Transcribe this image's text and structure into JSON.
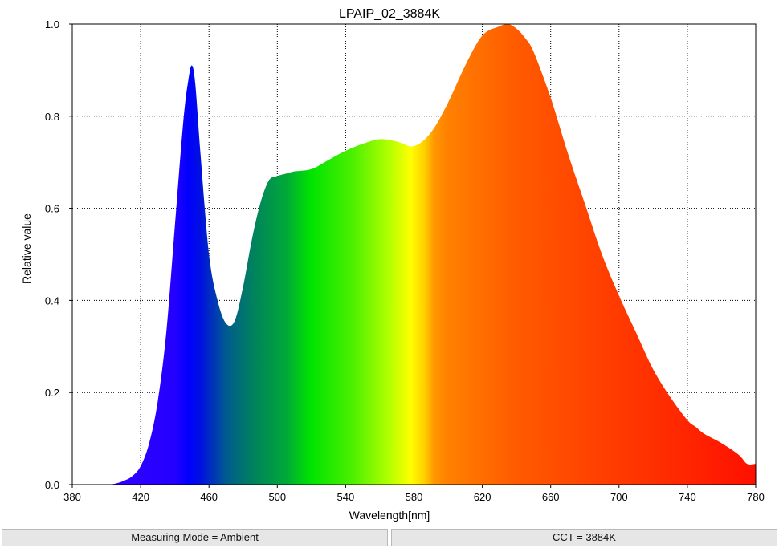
{
  "chart_data": {
    "type": "area",
    "title": "LPAIP_02_3884K",
    "xlabel": "Wavelength[nm]",
    "ylabel": "Relative value",
    "xlim": [
      380,
      780
    ],
    "ylim": [
      0,
      1.0
    ],
    "xticks": [
      380,
      420,
      460,
      500,
      540,
      580,
      620,
      660,
      700,
      740,
      780
    ],
    "yticks": [
      0.0,
      0.2,
      0.4,
      0.6,
      0.8,
      1.0
    ],
    "xtick_labels": [
      "380",
      "420",
      "460",
      "500",
      "540",
      "580",
      "620",
      "660",
      "700",
      "740",
      "780"
    ],
    "ytick_labels": [
      "0.0",
      "0.2",
      "0.4",
      "0.6",
      "0.8",
      "1.0"
    ],
    "grid": true,
    "fill": "visible-spectrum color gradient",
    "x": [
      400,
      405,
      410,
      415,
      420,
      425,
      430,
      435,
      440,
      445,
      448,
      450,
      452,
      455,
      460,
      465,
      470,
      475,
      480,
      485,
      490,
      495,
      500,
      505,
      510,
      520,
      530,
      540,
      550,
      560,
      570,
      580,
      590,
      600,
      610,
      620,
      630,
      635,
      640,
      645,
      650,
      660,
      670,
      680,
      690,
      700,
      710,
      720,
      730,
      740,
      745,
      750,
      760,
      770,
      775,
      780
    ],
    "y": [
      0.0,
      0.002,
      0.008,
      0.018,
      0.04,
      0.09,
      0.18,
      0.33,
      0.56,
      0.79,
      0.88,
      0.91,
      0.87,
      0.72,
      0.5,
      0.4,
      0.35,
      0.355,
      0.43,
      0.53,
      0.61,
      0.66,
      0.67,
      0.675,
      0.68,
      0.685,
      0.705,
      0.725,
      0.74,
      0.75,
      0.745,
      0.735,
      0.765,
      0.83,
      0.91,
      0.975,
      0.995,
      1.0,
      0.99,
      0.97,
      0.94,
      0.84,
      0.72,
      0.61,
      0.5,
      0.41,
      0.33,
      0.25,
      0.19,
      0.14,
      0.125,
      0.11,
      0.09,
      0.065,
      0.045,
      0.045
    ]
  },
  "status": {
    "measuring_mode": "Measuring Mode = Ambient",
    "cct": "CCT = 3884K"
  }
}
